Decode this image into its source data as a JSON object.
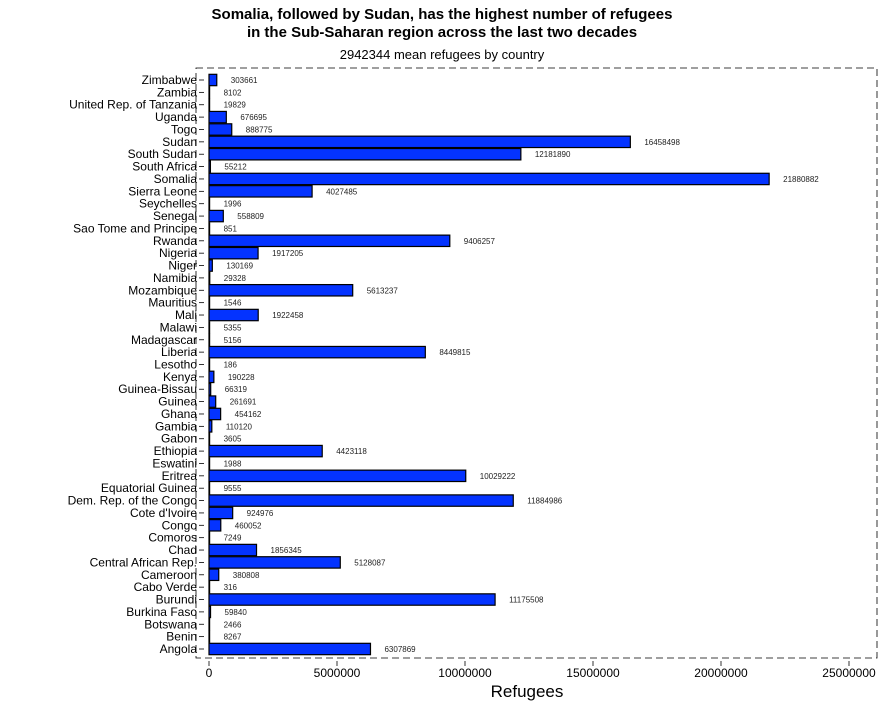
{
  "chart_data": {
    "type": "bar",
    "orientation": "horizontal",
    "title_lines": [
      "Somalia, followed by Sudan, has the highest number of refugees",
      "in the Sub-Saharan region across the last two decades"
    ],
    "subtitle": "2942344 mean refugees by country",
    "xlabel": "Refugees",
    "ylabel": "",
    "xlim": [
      0,
      26000000
    ],
    "x_ticks": [
      0,
      5000000,
      10000000,
      15000000,
      20000000,
      25000000
    ],
    "x_tick_labels": [
      "0",
      "5000000",
      "10000000",
      "15000000",
      "20000000",
      "25000000"
    ],
    "bar_color": "#0433ff",
    "bar_edge_color": "#000000",
    "grid": false,
    "categories": [
      "Zimbabwe",
      "Zambia",
      "United Rep. of Tanzania",
      "Uganda",
      "Togo",
      "Sudan",
      "South Sudan",
      "South Africa",
      "Somalia",
      "Sierra Leone",
      "Seychelles",
      "Senegal",
      "Sao Tome and Principe",
      "Rwanda",
      "Nigeria",
      "Niger",
      "Namibia",
      "Mozambique",
      "Mauritius",
      "Mali",
      "Malawi",
      "Madagascar",
      "Liberia",
      "Lesotho",
      "Kenya",
      "Guinea-Bissau",
      "Guinea",
      "Ghana",
      "Gambia",
      "Gabon",
      "Ethiopia",
      "Eswatini",
      "Eritrea",
      "Equatorial Guinea",
      "Dem. Rep. of the Congo",
      "Cote d'Ivoire",
      "Congo",
      "Comoros",
      "Chad",
      "Central African Rep.",
      "Cameroon",
      "Cabo Verde",
      "Burundi",
      "Burkina Faso",
      "Botswana",
      "Benin",
      "Angola"
    ],
    "values": [
      303661,
      8102,
      19829,
      676695,
      888775,
      16458498,
      12181890,
      55212,
      21880882,
      4027485,
      1996,
      558809,
      851,
      9406257,
      1917205,
      130169,
      29328,
      5613237,
      1546,
      1922458,
      5355,
      5156,
      8449815,
      186,
      190228,
      66319,
      261691,
      454162,
      110120,
      3605,
      4423118,
      1988,
      10029222,
      9555,
      11884986,
      924976,
      460052,
      7249,
      1856345,
      5128087,
      380808,
      316,
      11175508,
      59840,
      2466,
      8267,
      6307869
    ],
    "data_labels": [
      "303661",
      "8102",
      "19829",
      "676695",
      "888775",
      "16458498",
      "12181890",
      "55212",
      "21880882",
      "4027485",
      "1996",
      "558809",
      "851",
      "9406257",
      "1917205",
      "130169",
      "29328",
      "5613237",
      "1546",
      "1922458",
      "5355",
      "5156",
      "8449815",
      "186",
      "190228",
      "66319",
      "261691",
      "454162",
      "110120",
      "3605",
      "4423118",
      "1988",
      "10029222",
      "9555",
      "11884986",
      "924976",
      "460052",
      "7249",
      "1856345",
      "5128087",
      "380808",
      "316",
      "11175508",
      "59840",
      "2466",
      "8267",
      "6307869"
    ]
  }
}
